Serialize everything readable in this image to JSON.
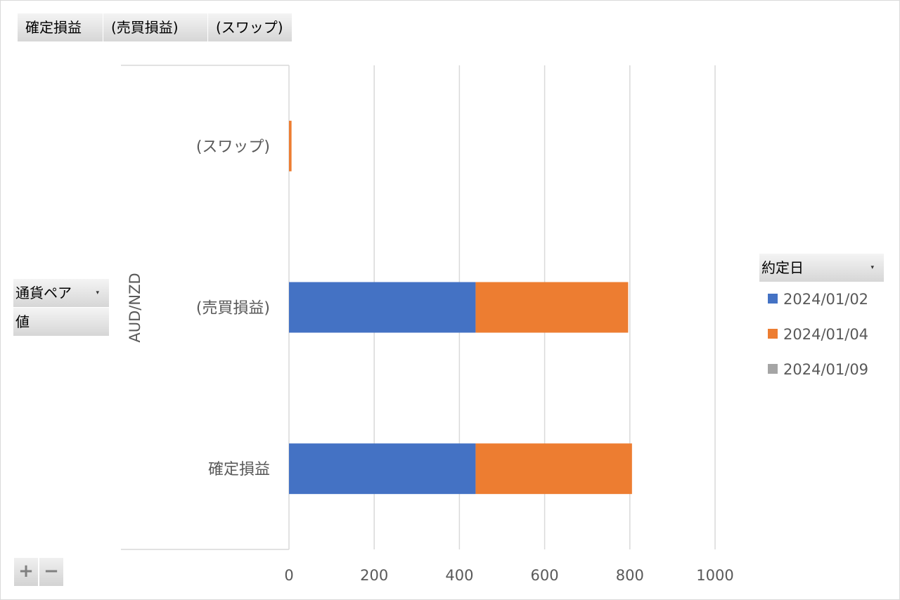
{
  "filter_fields": [
    "確定損益",
    "(売買損益)",
    "(スワップ)"
  ],
  "row_fields": {
    "currency_pair_label": "通貨ペア",
    "value_label": "値"
  },
  "legend_field_label": "約定日",
  "controls": {
    "expand_label": "+",
    "collapse_label": "−"
  },
  "chart_data": {
    "type": "bar",
    "orientation": "horizontal",
    "stacked": true,
    "group_label": "AUD/NZD",
    "categories": [
      "(スワップ)",
      "(売買損益)",
      "確定損益"
    ],
    "series": [
      {
        "name": "2024/01/02",
        "color": "#4472c4",
        "values": [
          0,
          438,
          438
        ]
      },
      {
        "name": "2024/01/04",
        "color": "#ed7d31",
        "values": [
          6,
          358,
          367
        ]
      },
      {
        "name": "2024/01/09",
        "color": "#a5a5a5",
        "values": [
          0,
          0,
          0
        ]
      }
    ],
    "xlim": [
      0,
      1000
    ],
    "xticks": [
      "0",
      "200",
      "400",
      "600",
      "800",
      "1000"
    ],
    "grid": true,
    "legend_position": "right"
  }
}
